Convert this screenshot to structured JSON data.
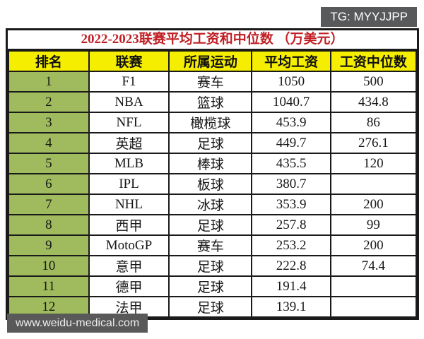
{
  "badge": {
    "label": "TG: MYYJJPP"
  },
  "watermark": {
    "label": "www.weidu-medical.com"
  },
  "chart_data": {
    "type": "table",
    "title": "2022-2023联赛平均工资和中位数 （万美元）",
    "unit": "万美元",
    "columns": [
      "排名",
      "联赛",
      "所属运动",
      "平均工资",
      "工资中位数"
    ],
    "rows": [
      [
        "1",
        "F1",
        "赛车",
        "1050",
        "500"
      ],
      [
        "2",
        "NBA",
        "篮球",
        "1040.7",
        "434.8"
      ],
      [
        "3",
        "NFL",
        "橄榄球",
        "453.9",
        "86"
      ],
      [
        "4",
        "英超",
        "足球",
        "449.7",
        "276.1"
      ],
      [
        "5",
        "MLB",
        "棒球",
        "435.5",
        "120"
      ],
      [
        "6",
        "IPL",
        "板球",
        "380.7",
        ""
      ],
      [
        "7",
        "NHL",
        "冰球",
        "353.9",
        "200"
      ],
      [
        "8",
        "西甲",
        "足球",
        "257.8",
        "99"
      ],
      [
        "9",
        "MotoGP",
        "赛车",
        "253.2",
        "200"
      ],
      [
        "10",
        "意甲",
        "足球",
        "222.8",
        "74.4"
      ],
      [
        "11",
        "德甲",
        "足球",
        "191.4",
        ""
      ],
      [
        "12",
        "法甲",
        "足球",
        "139.1",
        ""
      ]
    ],
    "colors": {
      "title_color": "#c11f25",
      "header_bg": "#f6ee00",
      "rank_bg": "#a0bb5e",
      "border": "#1a1a1a",
      "badge_bg": "#58595b"
    }
  }
}
